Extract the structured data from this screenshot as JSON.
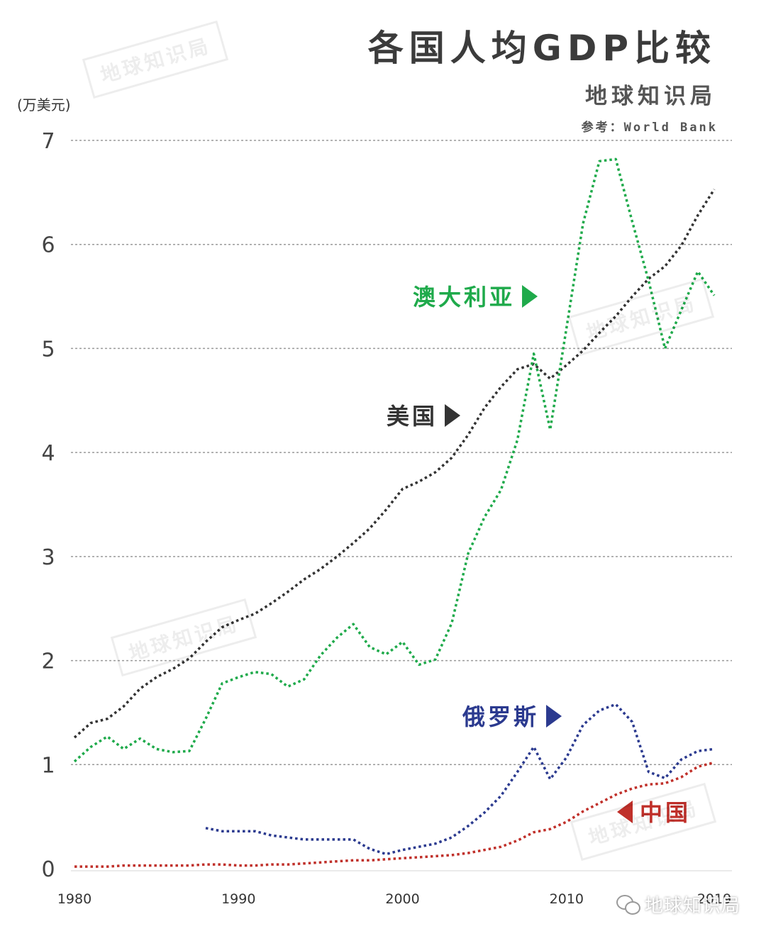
{
  "header": {
    "title": "各国人均GDP比较",
    "subtitle": "地球知识局",
    "source": "参考：World Bank"
  },
  "watermark_text": "地球知识局",
  "footer_text": "地球知识局",
  "chart_data": {
    "type": "line",
    "ylabel": "(万美元)",
    "xlabel": "",
    "ylim": [
      0,
      7
    ],
    "xlim": [
      1980,
      2019
    ],
    "yticks": [
      0,
      1,
      2,
      3,
      4,
      5,
      6,
      7
    ],
    "xticks": [
      1980,
      1990,
      2000,
      2010,
      2019
    ],
    "grid": true,
    "line_style": "dotted",
    "series": [
      {
        "name": "美国",
        "color": "#333333",
        "x": [
          1980,
          1981,
          1982,
          1983,
          1984,
          1985,
          1986,
          1987,
          1988,
          1989,
          1990,
          1991,
          1992,
          1993,
          1994,
          1995,
          1996,
          1997,
          1998,
          1999,
          2000,
          2001,
          2002,
          2003,
          2004,
          2005,
          2006,
          2007,
          2008,
          2009,
          2010,
          2011,
          2012,
          2013,
          2014,
          2015,
          2016,
          2017,
          2018,
          2019
        ],
        "values": [
          1.26,
          1.4,
          1.44,
          1.56,
          1.73,
          1.84,
          1.92,
          2.02,
          2.18,
          2.32,
          2.39,
          2.45,
          2.55,
          2.66,
          2.78,
          2.88,
          3.0,
          3.13,
          3.27,
          3.45,
          3.65,
          3.72,
          3.81,
          3.95,
          4.17,
          4.43,
          4.63,
          4.8,
          4.85,
          4.71,
          4.84,
          4.98,
          5.15,
          5.31,
          5.5,
          5.67,
          5.79,
          5.99,
          6.28,
          6.53
        ]
      },
      {
        "name": "澳大利亚",
        "color": "#1faa4b",
        "x": [
          1980,
          1981,
          1982,
          1983,
          1984,
          1985,
          1986,
          1987,
          1988,
          1989,
          1990,
          1991,
          1992,
          1993,
          1994,
          1995,
          1996,
          1997,
          1998,
          1999,
          2000,
          2001,
          2002,
          2003,
          2004,
          2005,
          2006,
          2007,
          2008,
          2009,
          2010,
          2011,
          2012,
          2013,
          2014,
          2015,
          2016,
          2017,
          2018,
          2019
        ],
        "values": [
          1.03,
          1.17,
          1.27,
          1.15,
          1.25,
          1.15,
          1.12,
          1.13,
          1.44,
          1.78,
          1.84,
          1.89,
          1.87,
          1.75,
          1.82,
          2.05,
          2.22,
          2.35,
          2.13,
          2.06,
          2.18,
          1.96,
          2.01,
          2.36,
          3.03,
          3.38,
          3.64,
          4.12,
          4.95,
          4.22,
          5.2,
          6.2,
          6.8,
          6.82,
          6.22,
          5.65,
          5.0,
          5.37,
          5.74,
          5.51
        ]
      },
      {
        "name": "俄罗斯",
        "color": "#2b3a8f",
        "x": [
          1988,
          1989,
          1990,
          1991,
          1992,
          1993,
          1994,
          1995,
          1996,
          1997,
          1998,
          1999,
          2000,
          2001,
          2002,
          2003,
          2004,
          2005,
          2006,
          2007,
          2008,
          2009,
          2010,
          2011,
          2012,
          2013,
          2014,
          2015,
          2016,
          2017,
          2018,
          2019
        ],
        "values": [
          0.39,
          0.36,
          0.36,
          0.36,
          0.32,
          0.3,
          0.28,
          0.28,
          0.28,
          0.28,
          0.19,
          0.14,
          0.18,
          0.21,
          0.24,
          0.3,
          0.41,
          0.54,
          0.7,
          0.93,
          1.17,
          0.86,
          1.07,
          1.38,
          1.52,
          1.58,
          1.41,
          0.93,
          0.87,
          1.05,
          1.13,
          1.15
        ]
      },
      {
        "name": "中国",
        "color": "#c0302a",
        "x": [
          1980,
          1981,
          1982,
          1983,
          1984,
          1985,
          1986,
          1987,
          1988,
          1989,
          1990,
          1991,
          1992,
          1993,
          1994,
          1995,
          1996,
          1997,
          1998,
          1999,
          2000,
          2001,
          2002,
          2003,
          2004,
          2005,
          2006,
          2007,
          2008,
          2009,
          2010,
          2011,
          2012,
          2013,
          2014,
          2015,
          2016,
          2017,
          2018,
          2019
        ],
        "values": [
          0.02,
          0.02,
          0.02,
          0.03,
          0.03,
          0.03,
          0.03,
          0.03,
          0.04,
          0.04,
          0.03,
          0.03,
          0.04,
          0.04,
          0.05,
          0.06,
          0.07,
          0.08,
          0.08,
          0.09,
          0.1,
          0.11,
          0.12,
          0.13,
          0.15,
          0.18,
          0.21,
          0.27,
          0.35,
          0.38,
          0.45,
          0.55,
          0.63,
          0.71,
          0.77,
          0.81,
          0.82,
          0.88,
          0.98,
          1.02
        ]
      }
    ],
    "annotations": [
      {
        "series": "澳大利亚",
        "text": "澳大利亚",
        "arrow": "right",
        "color": "#1faa4b"
      },
      {
        "series": "美国",
        "text": "美国",
        "arrow": "right",
        "color": "#333333"
      },
      {
        "series": "俄罗斯",
        "text": "俄罗斯",
        "arrow": "right",
        "color": "#2b3a8f"
      },
      {
        "series": "中国",
        "text": "中国",
        "arrow": "left",
        "color": "#c0302a"
      }
    ]
  }
}
